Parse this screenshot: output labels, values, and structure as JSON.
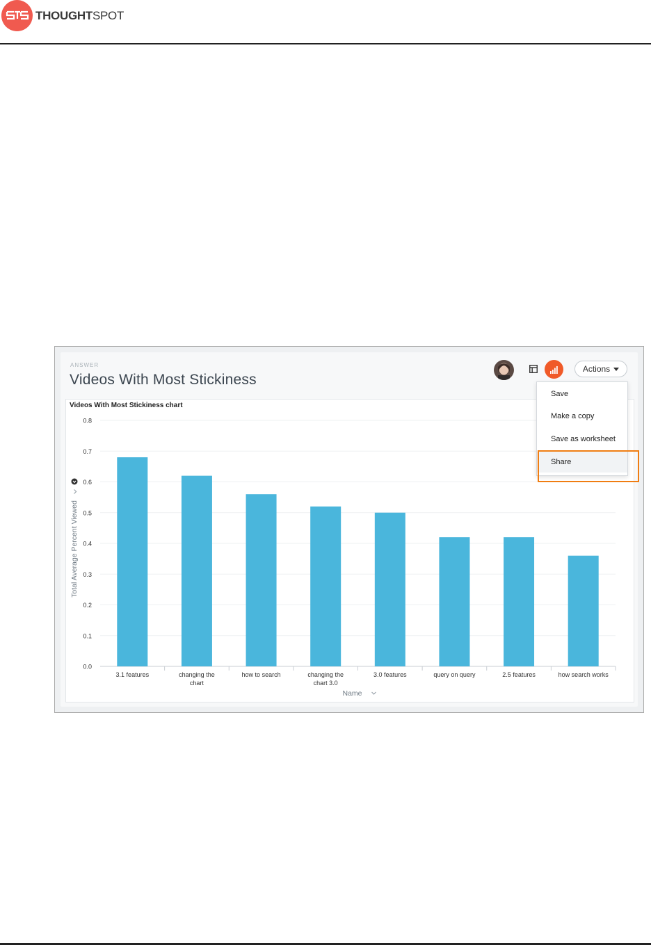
{
  "doc": {
    "logo_text_bold": "THOUGHT",
    "logo_text_light": "SPOT"
  },
  "answer": {
    "kicker": "ANSWER",
    "title": "Videos With Most Stickiness",
    "actions_label": "Actions"
  },
  "menu": {
    "items": [
      "Save",
      "Make a copy",
      "Save as worksheet",
      "Share"
    ],
    "highlighted": "Share"
  },
  "colors": {
    "bar": "#4ab6dc",
    "accent": "#f05a28",
    "highlight_box": "#f07d12"
  },
  "icons": {
    "table_view": "table-icon",
    "chart_view": "bar-chart-icon",
    "sort": "sort-icon"
  },
  "chart_data": {
    "type": "bar",
    "title": "Videos With Most Stickiness chart",
    "xlabel": "Name",
    "ylabel": "Total Average Percent Viewed",
    "categories": [
      [
        "3.1 features"
      ],
      [
        "changing the",
        "chart"
      ],
      [
        "how to search"
      ],
      [
        "changing the",
        "chart 3.0"
      ],
      [
        "3.0 features"
      ],
      [
        "query on query"
      ],
      [
        "2.5 features"
      ],
      [
        "how search works"
      ]
    ],
    "values": [
      0.68,
      0.62,
      0.56,
      0.52,
      0.5,
      0.42,
      0.42,
      0.36
    ],
    "yticks": [
      "0.0",
      "0.1",
      "0.2",
      "0.3",
      "0.4",
      "0.5",
      "0.6",
      "0.7",
      "0.8"
    ],
    "ylim": [
      0,
      0.8
    ],
    "grid": true
  }
}
